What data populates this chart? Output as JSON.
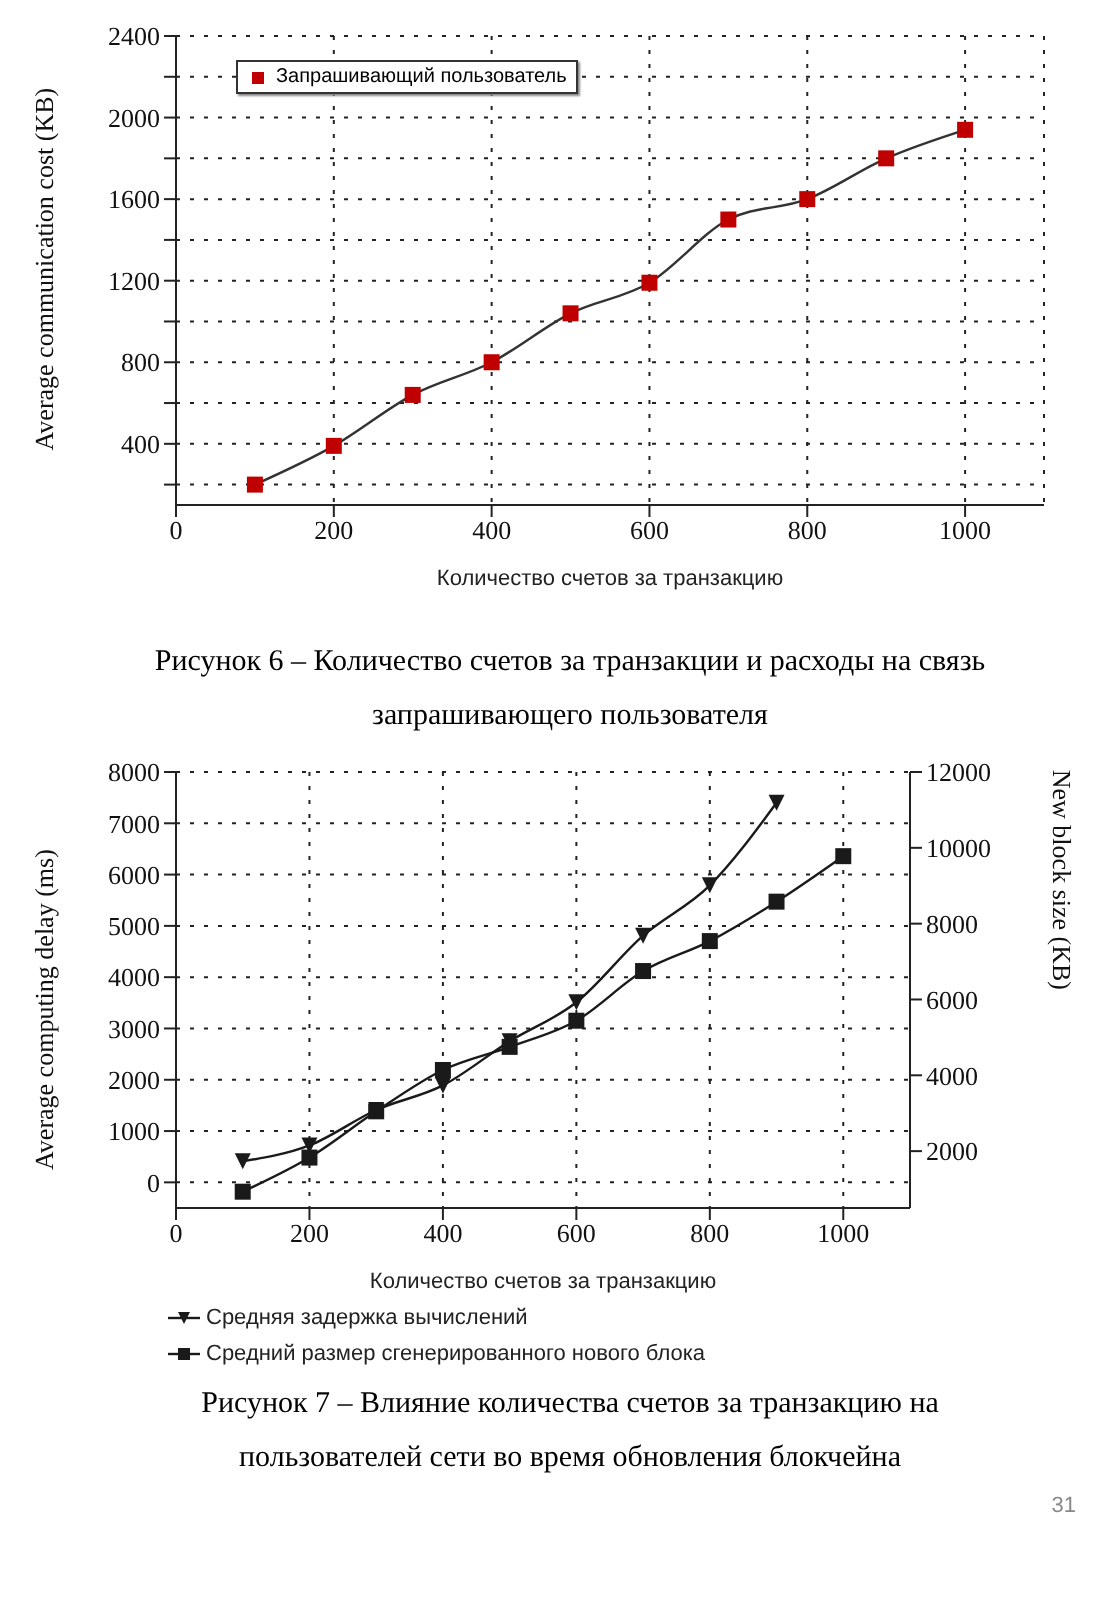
{
  "chart_data": [
    {
      "type": "line",
      "xlabel": "Количество счетов за транзакцию",
      "ylabel": "Average communication cost (KB)",
      "x": [
        100,
        200,
        300,
        400,
        500,
        600,
        700,
        800,
        900,
        1000
      ],
      "series": [
        {
          "name": "Запрашивающий пользователь",
          "color": "#c00000",
          "values": [
            200,
            390,
            640,
            800,
            1040,
            1190,
            1500,
            1600,
            1800,
            1940
          ]
        }
      ],
      "xlim": [
        0,
        1100
      ],
      "xticks": [
        0,
        200,
        400,
        600,
        800,
        1000
      ],
      "ylim": [
        100,
        2400
      ],
      "yticks": [
        {
          "value": 200,
          "label": null
        },
        400,
        {
          "value": 600,
          "label": null
        },
        800,
        {
          "value": 1000,
          "label": null
        },
        1200,
        {
          "value": 1400,
          "label": null
        },
        1600,
        {
          "value": 1800,
          "label": null
        },
        2000,
        {
          "value": 2200,
          "label": null
        },
        2400
      ],
      "grid": true,
      "legend": "top left",
      "marker": "square",
      "annotations": [
        "Рисунок 6 – Количество счетов за транзакции и расходы на связь запрашивающего пользователя"
      ]
    },
    {
      "type": "line",
      "xlabel": "Количество счетов за транзакцию",
      "ylabel": "Average computing delay (ms)",
      "y2label": "New block size (KB)",
      "x": [
        100,
        200,
        300,
        400,
        500,
        600,
        700,
        800,
        900,
        1000
      ],
      "series": [
        {
          "name": "Средняя задержка вычислений",
          "color": "#1a1a1a",
          "marker": "triangle",
          "values": [
            410,
            720,
            1410,
            1890,
            2750,
            3510,
            4810,
            5790,
            7400,
            null
          ]
        },
        {
          "name": "Средний размер сгенерированного нового блока",
          "color": "#1a1a1a",
          "marker": "square",
          "axis": "y2",
          "values": [
            930,
            1830,
            3050,
            4140,
            4750,
            5440,
            6750,
            7540,
            8580,
            9780
          ]
        }
      ],
      "xlim": [
        0,
        1100
      ],
      "xticks": [
        0,
        200,
        400,
        600,
        800,
        1000
      ],
      "ylim": [
        -500,
        8000
      ],
      "yticks": [
        0,
        1000,
        2000,
        3000,
        4000,
        5000,
        6000,
        7000,
        8000
      ],
      "y2lim": [
        500,
        12000
      ],
      "y2ticks": [
        2000,
        4000,
        6000,
        8000,
        10000,
        12000
      ],
      "grid": true,
      "legend": "bottom",
      "annotations": [
        "Рисунок 7 – Влияние количества счетов за транзакцию на пользователей сети во время обновления блокчейна",
        "31"
      ]
    }
  ]
}
